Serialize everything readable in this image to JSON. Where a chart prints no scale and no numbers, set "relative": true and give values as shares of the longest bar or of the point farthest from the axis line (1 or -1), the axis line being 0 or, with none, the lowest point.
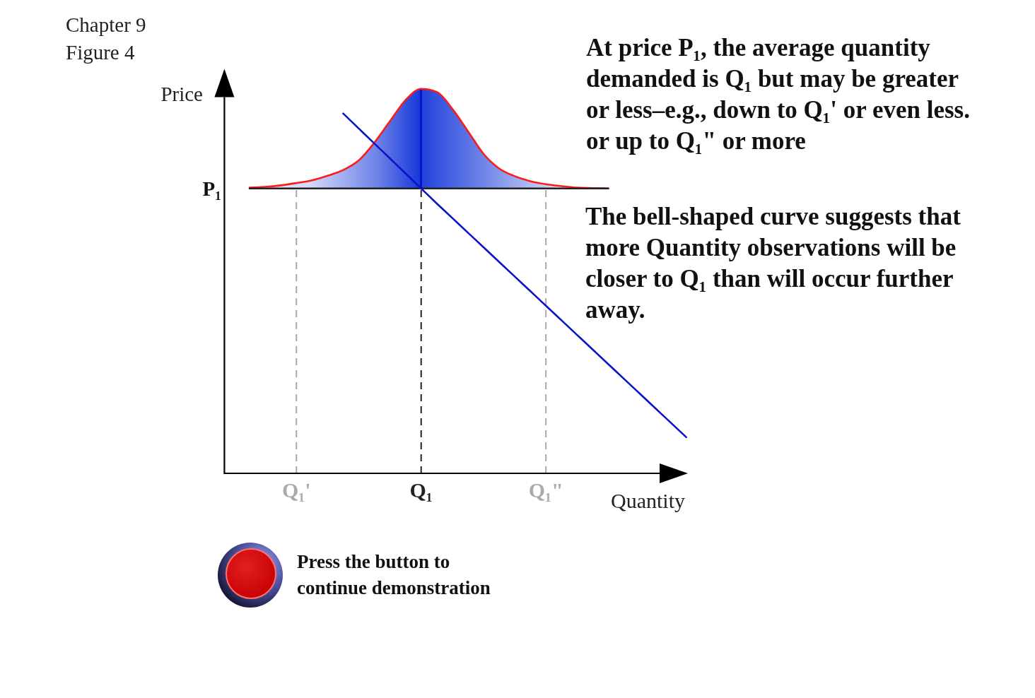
{
  "chart_data": {
    "type": "line",
    "title": "Chapter 9",
    "subtitle": "Figure 4",
    "xlabel": "Quantity",
    "ylabel": "Price",
    "relative": true,
    "categories": [
      null,
      null,
      null,
      null,
      "Q₁'",
      null,
      null,
      null,
      null,
      null,
      null,
      null,
      "Q₁",
      null,
      null,
      null,
      null,
      null,
      null,
      null,
      "Q₁\"",
      null,
      null,
      null,
      null,
      null,
      null,
      null,
      null,
      null
    ],
    "series": [
      {
        "color": "#ff1a1a",
        "values": [
          null,
          0.743,
          0.745,
          0.749,
          0.755,
          0.762,
          0.774,
          0.789,
          0.814,
          0.86,
          0.916,
          0.971,
          1,
          0.992,
          0.948,
          0.89,
          0.831,
          0.793,
          0.773,
          0.76,
          0.752,
          0.747,
          0.743,
          0.742,
          0.741,
          null,
          null,
          null,
          null,
          null
        ],
        "lower": [
          null,
          0.741,
          0.741,
          0.741,
          0.741,
          0.741,
          0.741,
          0.741,
          0.741,
          0.741,
          0.741,
          0.741,
          0.741,
          0.741,
          0.741,
          0.741,
          0.741,
          0.741,
          0.741,
          0.741,
          0.741,
          0.741,
          0.741,
          0.741,
          0.741,
          null,
          null,
          null,
          null,
          null
        ],
        "upper": [
          null,
          0.743,
          0.745,
          0.749,
          0.755,
          0.762,
          0.774,
          0.789,
          0.814,
          0.86,
          0.916,
          0.971,
          1,
          0.992,
          0.948,
          0.89,
          0.831,
          0.793,
          0.773,
          0.76,
          0.752,
          0.747,
          0.743,
          0.742,
          0.741,
          null,
          null,
          null,
          null,
          null
        ]
      },
      {
        "color": "#222222",
        "values": [
          null,
          0.741,
          0.741,
          0.741,
          0.741,
          0.741,
          0.741,
          0.741,
          0.741,
          0.741,
          0.741,
          0.741,
          0.741,
          0.741,
          0.741,
          0.741,
          0.741,
          0.741,
          0.741,
          0.741,
          0.741,
          0.741,
          0.741,
          0.741,
          0.741,
          null,
          null,
          null,
          null,
          null
        ]
      },
      {
        "color": "#0c12cc",
        "values": [
          null,
          null,
          null,
          null,
          null,
          null,
          null,
          0.936,
          0.897,
          0.858,
          0.819,
          0.78,
          0.741,
          0.702,
          0.664,
          0.626,
          0.588,
          0.55,
          0.512,
          0.474,
          0.436,
          0.398,
          0.36,
          0.322,
          0.284,
          0.246,
          0.208,
          0.17,
          0.132,
          0.094
        ]
      }
    ],
    "ref_lines": [
      {
        "axis": "x",
        "value": "Q₁'",
        "color": "#aaaaaa",
        "line_style": "dashed"
      },
      {
        "axis": "x",
        "value": "Q₁",
        "color": "#222222",
        "line_style": "dashed"
      },
      {
        "axis": "x",
        "value": "Q₁\"",
        "color": "#aaaaaa",
        "line_style": "dashed"
      }
    ],
    "annotations": [
      "At price P₁, the average quantity\ndemanded is Q₁ but may be greater\nor less–e.g., down to Q₁' or even less.\nor up to Q₁\" or more",
      "The bell-shaped curve suggests that\nmore Quantity observations will be\ncloser to Q₁ than will occur further\naway.",
      "Press the button to\ncontinue demonstration",
      "P₁"
    ]
  }
}
